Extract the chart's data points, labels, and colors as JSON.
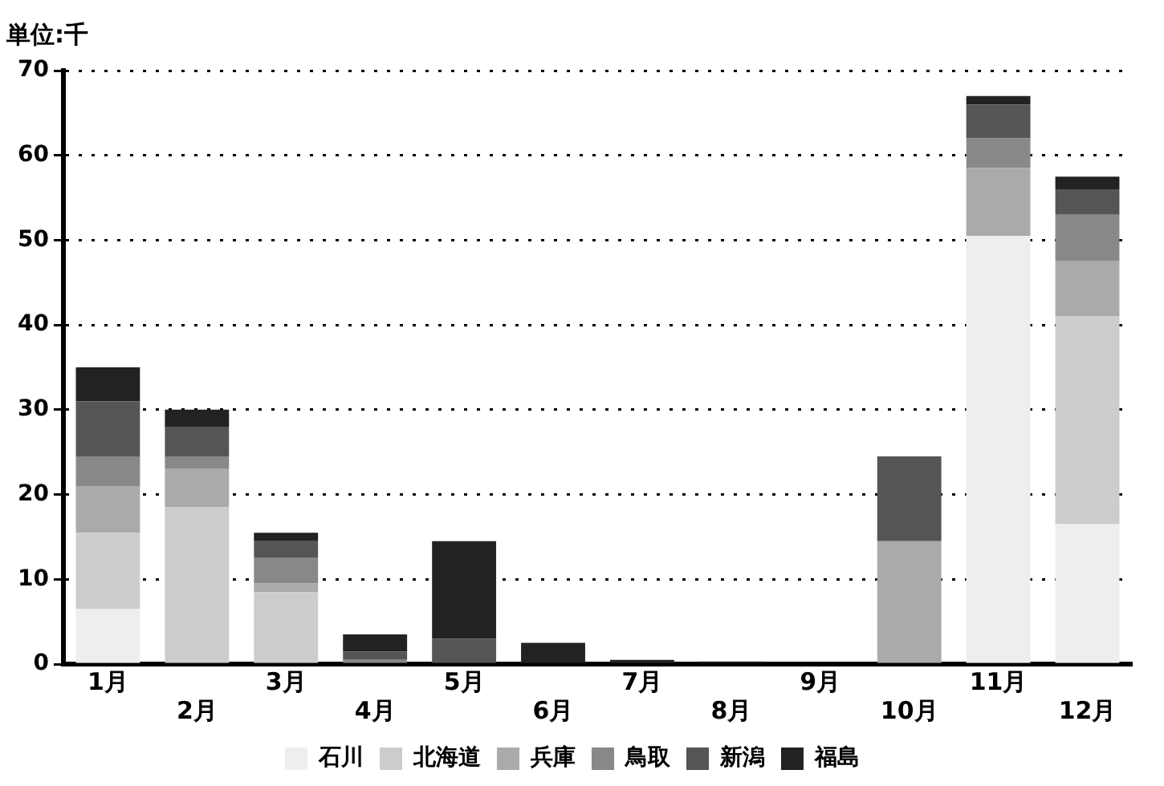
{
  "chart_data": {
    "type": "bar",
    "stacked": true,
    "ylabel": "単位:千",
    "categories": [
      "1月",
      "2月",
      "3月",
      "4月",
      "5月",
      "6月",
      "7月",
      "8月",
      "9月",
      "10月",
      "11月",
      "12月"
    ],
    "series": [
      {
        "name": "石川",
        "color": "#eeeeee",
        "values": [
          6.5,
          0,
          0,
          0,
          0,
          0,
          0,
          0,
          0,
          0,
          50.5,
          16.5
        ]
      },
      {
        "name": "北海道",
        "color": "#cccccc",
        "values": [
          9,
          18.5,
          8.5,
          0,
          0,
          0,
          0,
          0,
          0,
          0,
          0,
          24.5
        ]
      },
      {
        "name": "兵庫",
        "color": "#aaaaaa",
        "values": [
          5.5,
          4.5,
          1,
          0,
          0,
          0,
          0,
          0,
          0,
          14.5,
          8,
          6.5
        ]
      },
      {
        "name": "鳥取",
        "color": "#888888",
        "values": [
          3.5,
          1.5,
          3,
          0.5,
          0,
          0,
          0,
          0,
          0,
          0,
          3.5,
          5.5
        ]
      },
      {
        "name": "新潟",
        "color": "#555555",
        "values": [
          6.5,
          3.5,
          2,
          1,
          3,
          0,
          0,
          0,
          0,
          10,
          4,
          3
        ]
      },
      {
        "name": "福島",
        "color": "#222222",
        "values": [
          4,
          2,
          1,
          2,
          11.5,
          2.5,
          0.5,
          0.3,
          0,
          0,
          1,
          1.5
        ]
      }
    ],
    "ylim": [
      0,
      70
    ],
    "yticks": [
      0,
      10,
      20,
      30,
      40,
      50,
      60,
      70
    ],
    "grid": "y",
    "legend": "bottom"
  }
}
